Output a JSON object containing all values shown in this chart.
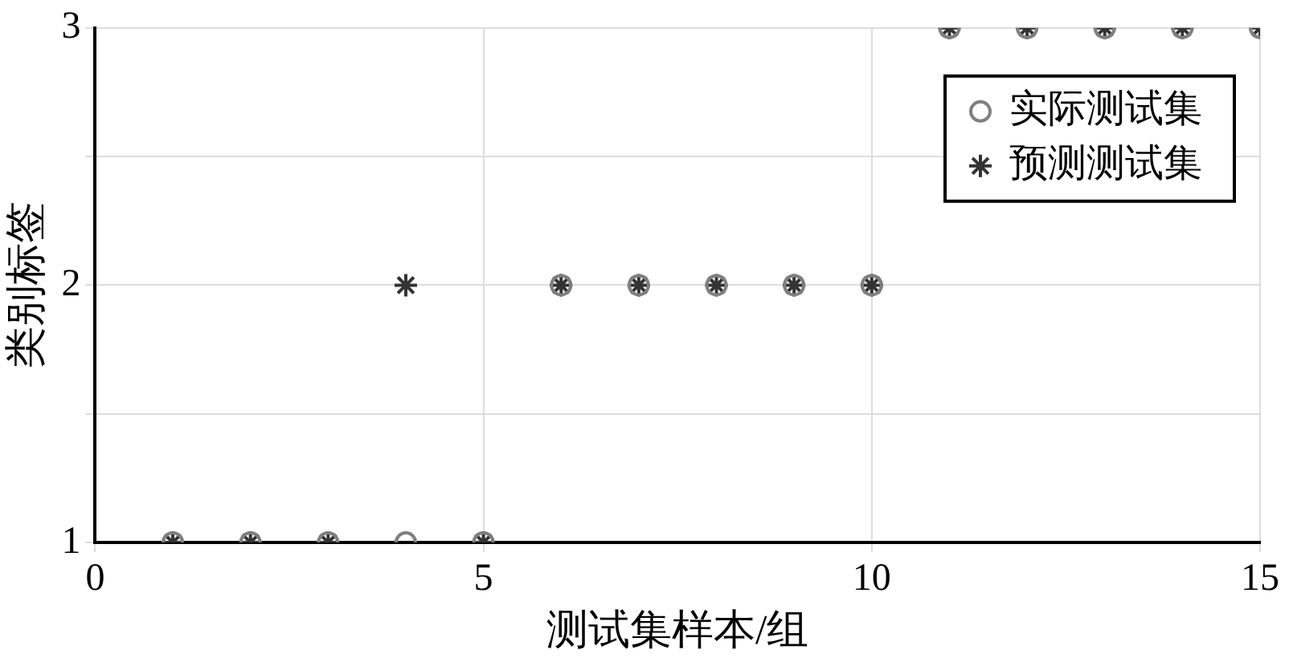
{
  "chart_data": {
    "type": "scatter",
    "xlabel": "测试集样本/组",
    "ylabel": "类别标签",
    "x": [
      1,
      2,
      3,
      4,
      5,
      6,
      7,
      8,
      9,
      10,
      11,
      12,
      13,
      14,
      15
    ],
    "series": [
      {
        "name": "实际测试集",
        "color": "#7f7f7f",
        "marker": "circle",
        "values": [
          1,
          1,
          1,
          1,
          1,
          2,
          2,
          2,
          2,
          2,
          3,
          3,
          3,
          3,
          3
        ]
      },
      {
        "name": "预测测试集",
        "color": "#333333",
        "marker": "cross",
        "values": [
          1,
          1,
          1,
          2,
          1,
          2,
          2,
          2,
          2,
          2,
          3,
          3,
          3,
          3,
          3
        ]
      }
    ],
    "xlim": [
      0,
      15
    ],
    "xticks": [
      0,
      5,
      10,
      15
    ],
    "ylim": [
      1,
      3
    ],
    "yticks": [
      1,
      {
        "value": 1.5,
        "label": null
      },
      2,
      {
        "value": 2.5,
        "label": null
      },
      3
    ],
    "grid": true,
    "legend": "top right"
  }
}
